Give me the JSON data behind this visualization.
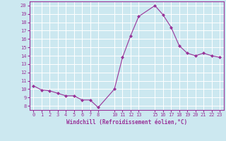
{
  "x": [
    0,
    1,
    2,
    3,
    4,
    5,
    6,
    7,
    8,
    10,
    11,
    12,
    13,
    15,
    16,
    17,
    18,
    19,
    20,
    21,
    22,
    23
  ],
  "y": [
    10.4,
    9.9,
    9.8,
    9.5,
    9.2,
    9.2,
    8.7,
    8.7,
    7.8,
    10.0,
    13.8,
    16.4,
    18.7,
    20.0,
    18.9,
    17.4,
    15.2,
    14.3,
    14.0,
    14.3,
    14.0,
    13.8
  ],
  "xticks": [
    0,
    1,
    2,
    3,
    4,
    5,
    6,
    7,
    8,
    10,
    11,
    12,
    13,
    15,
    16,
    17,
    18,
    19,
    20,
    21,
    22,
    23
  ],
  "xtick_labels": [
    "0",
    "1",
    "2",
    "3",
    "4",
    "5",
    "6",
    "7",
    "8",
    "10",
    "11",
    "12",
    "13",
    "15",
    "16",
    "17",
    "18",
    "19",
    "20",
    "21",
    "22",
    "23"
  ],
  "yticks": [
    8,
    9,
    10,
    11,
    12,
    13,
    14,
    15,
    16,
    17,
    18,
    19,
    20
  ],
  "ylim": [
    7.5,
    20.5
  ],
  "xlim": [
    -0.5,
    23.5
  ],
  "xlabel": "Windchill (Refroidissement éolien,°C)",
  "line_color": "#993399",
  "marker": "D",
  "marker_size": 2,
  "bg_color": "#cce8f0",
  "grid_color": "#ffffff",
  "tick_color": "#993399",
  "label_color": "#993399",
  "tick_fontsize": 5,
  "label_fontsize": 5.5
}
